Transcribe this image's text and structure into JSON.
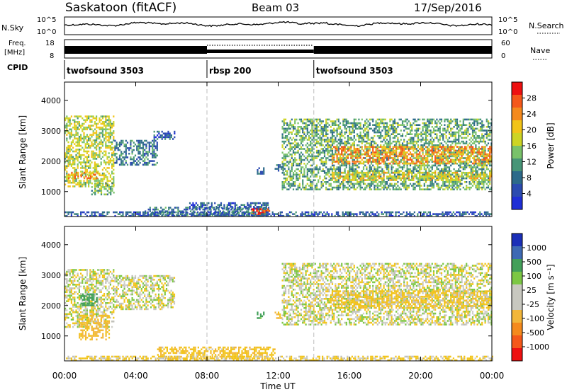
{
  "header": {
    "station": "Saskatoon (fitACF)",
    "beam": "Beam 03",
    "date": "17/Sep/2016"
  },
  "strip_labels": {
    "nsky": "N.Sky",
    "nsky_tick_top": "10^5",
    "nsky_tick_bottom": "10^0",
    "nsearch": "N.Search",
    "nsearch_tick_top": "10^5",
    "nsearch_tick_bottom": "10^0",
    "freq_line1": "Freq.",
    "freq_line2": "[MHz]",
    "freq_tick_top": "18",
    "freq_tick_bottom": "8",
    "nave": "Nave",
    "nave_tick_top": "60",
    "nave_tick_bottom": "0",
    "cpid": "CPID"
  },
  "cpid_segments": [
    {
      "label": "twofsound 3503",
      "start_hour": 0,
      "end_hour": 8
    },
    {
      "label": "rbsp 200",
      "start_hour": 8,
      "end_hour": 14
    },
    {
      "label": "twofsound 3503",
      "start_hour": 14,
      "end_hour": 24
    }
  ],
  "time_axis": {
    "label": "Time UT",
    "tick_hours": [
      0,
      4,
      8,
      12,
      16,
      20,
      24
    ],
    "tick_labels": [
      "00:00",
      "04:00",
      "08:00",
      "12:00",
      "16:00",
      "20:00",
      "00:00"
    ]
  },
  "range_axis": {
    "label": "Slant Range [km]",
    "ticks": [
      1000,
      2000,
      3000,
      4000
    ],
    "tick_labels": [
      "1000",
      "2000",
      "3000",
      "4000"
    ],
    "range": [
      180,
      4600
    ]
  },
  "power_colorbar": {
    "label": "Power [dB]",
    "tick_labels": [
      "28",
      "24",
      "20",
      "16",
      "12",
      "8",
      "4"
    ],
    "colors": [
      "#ee1111",
      "#f5581a",
      "#f58a1d",
      "#f2c418",
      "#cdd424",
      "#79c26a",
      "#479577",
      "#2d6a8a",
      "#2b4bb0",
      "#1f2fd6"
    ]
  },
  "velocity_colorbar": {
    "label": "Velocity [m s⁻¹]",
    "tick_labels": [
      "1000",
      "500",
      "100",
      "25",
      "-25",
      "-100",
      "-500",
      "-1000"
    ],
    "colors": [
      "#1b2fb8",
      "#3e6ab4",
      "#43a05a",
      "#7cc744",
      "#c8c8c0",
      "#c8c8c0",
      "#f2b63a",
      "#f58a1d",
      "#f5581a",
      "#ee1111"
    ]
  },
  "chart_data": [
    {
      "type": "heatmap",
      "name": "power",
      "xlabel": "Time UT",
      "ylabel": "Slant Range [km]",
      "zlabel": "Power [dB]",
      "xlim": [
        0,
        24
      ],
      "ylim": [
        180,
        4600
      ],
      "zlim": [
        0,
        30
      ],
      "regions": [
        {
          "t": [
            0,
            2.8
          ],
          "r": [
            1200,
            3500
          ],
          "z": 16
        },
        {
          "t": [
            0.2,
            1.8
          ],
          "r": [
            1450,
            1650
          ],
          "z": 22
        },
        {
          "t": [
            1.5,
            2.8
          ],
          "r": [
            900,
            1300
          ],
          "z": 12
        },
        {
          "t": [
            2.8,
            5.2
          ],
          "r": [
            1900,
            2700
          ],
          "z": 8
        },
        {
          "t": [
            5.0,
            6.2
          ],
          "r": [
            2700,
            3000
          ],
          "z": 6
        },
        {
          "t": [
            4.5,
            11.5
          ],
          "r": [
            200,
            500
          ],
          "z": 8
        },
        {
          "t": [
            7.0,
            11.5
          ],
          "r": [
            450,
            650
          ],
          "z": 6
        },
        {
          "t": [
            10.5,
            11.5
          ],
          "r": [
            250,
            450
          ],
          "z": 26
        },
        {
          "t": [
            10.8,
            11.2
          ],
          "r": [
            1600,
            1800
          ],
          "z": 8
        },
        {
          "t": [
            11.8,
            12.4
          ],
          "r": [
            1700,
            1900
          ],
          "z": 8
        },
        {
          "t": [
            12.2,
            24
          ],
          "r": [
            1100,
            3400
          ],
          "z": 12
        },
        {
          "t": [
            15,
            24
          ],
          "r": [
            1900,
            2500
          ],
          "z": 22
        },
        {
          "t": [
            15,
            24
          ],
          "r": [
            1350,
            1650
          ],
          "z": 18
        },
        {
          "t": [
            0,
            24
          ],
          "r": [
            190,
            350
          ],
          "z": 6
        }
      ]
    },
    {
      "type": "heatmap",
      "name": "velocity",
      "xlabel": "Time UT",
      "ylabel": "Slant Range [km]",
      "zlabel": "Velocity [m s⁻¹]",
      "xlim": [
        0,
        24
      ],
      "ylim": [
        180,
        4600
      ],
      "zlim": [
        -1000,
        1000
      ],
      "regions": [
        {
          "t": [
            0,
            2.8
          ],
          "r": [
            1300,
            3200
          ],
          "z": 0
        },
        {
          "t": [
            0.8,
            2.5
          ],
          "r": [
            900,
            1700
          ],
          "z": -120
        },
        {
          "t": [
            0.9,
            1.8
          ],
          "r": [
            2000,
            2400
          ],
          "z": 200
        },
        {
          "t": [
            2.8,
            6.2
          ],
          "r": [
            1900,
            3000
          ],
          "z": 0
        },
        {
          "t": [
            5.2,
            11.8
          ],
          "r": [
            250,
            650
          ],
          "z": -80
        },
        {
          "t": [
            10.8,
            11.2
          ],
          "r": [
            1600,
            1800
          ],
          "z": 150
        },
        {
          "t": [
            11.8,
            12.4
          ],
          "r": [
            1600,
            1800
          ],
          "z": -120
        },
        {
          "t": [
            12.2,
            24
          ],
          "r": [
            1400,
            3400
          ],
          "z": 0
        },
        {
          "t": [
            15,
            24
          ],
          "r": [
            1900,
            2500
          ],
          "z": -60
        },
        {
          "t": [
            0,
            24
          ],
          "r": [
            190,
            350
          ],
          "z": -40
        }
      ]
    }
  ]
}
